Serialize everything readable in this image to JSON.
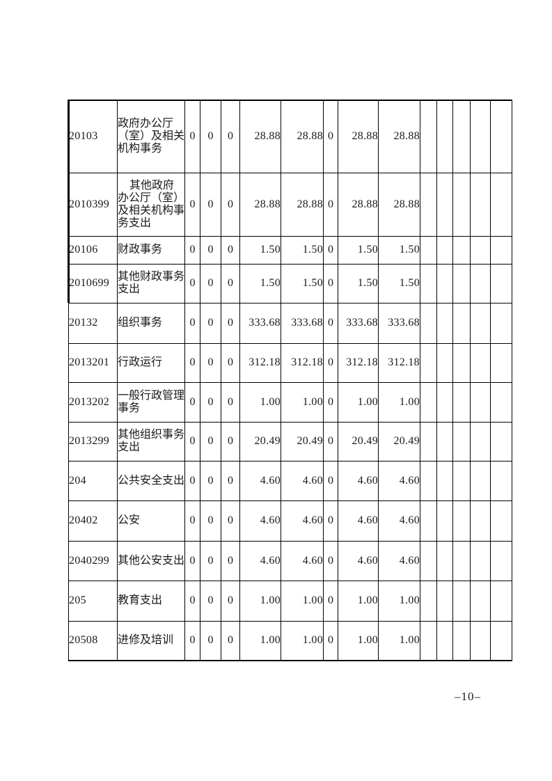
{
  "page": {
    "number": "–10–"
  },
  "table": {
    "rows": [
      {
        "code": "20103",
        "desc": "政府办公厅（室）及相关机构事务",
        "indent": false,
        "cells": [
          "0",
          "0",
          "0",
          "28.88",
          "28.88",
          "0",
          "28.88",
          "28.88",
          "",
          "",
          "",
          "",
          ""
        ]
      },
      {
        "code": "2010399",
        "desc": "其他政府办公厅（室）及相关机构事务支出",
        "indent": true,
        "cells": [
          "0",
          "0",
          "0",
          "28.88",
          "28.88",
          "0",
          "28.88",
          "28.88",
          "",
          "",
          "",
          "",
          ""
        ]
      },
      {
        "code": "20106",
        "desc": "财政事务",
        "indent": false,
        "cells": [
          "0",
          "0",
          "0",
          "1.50",
          "1.50",
          "0",
          "1.50",
          "1.50",
          "",
          "",
          "",
          "",
          ""
        ]
      },
      {
        "code": "2010699",
        "desc": "其他财政事务支出",
        "indent": false,
        "cells": [
          "0",
          "0",
          "0",
          "1.50",
          "1.50",
          "0",
          "1.50",
          "1.50",
          "",
          "",
          "",
          "",
          ""
        ]
      },
      {
        "code": "20132",
        "desc": "组织事务",
        "indent": false,
        "cells": [
          "0",
          "0",
          "0",
          "333.68",
          "333.68",
          "0",
          "333.68",
          "333.68",
          "",
          "",
          "",
          "",
          ""
        ]
      },
      {
        "code": "2013201",
        "desc": "行政运行",
        "indent": false,
        "cells": [
          "0",
          "0",
          "0",
          "312.18",
          "312.18",
          "0",
          "312.18",
          "312.18",
          "",
          "",
          "",
          "",
          ""
        ]
      },
      {
        "code": "2013202",
        "desc": "一般行政管理事务",
        "indent": false,
        "cells": [
          "0",
          "0",
          "0",
          "1.00",
          "1.00",
          "0",
          "1.00",
          "1.00",
          "",
          "",
          "",
          "",
          ""
        ]
      },
      {
        "code": "2013299",
        "desc": "其他组织事务支出",
        "indent": false,
        "cells": [
          "0",
          "0",
          "0",
          "20.49",
          "20.49",
          "0",
          "20.49",
          "20.49",
          "",
          "",
          "",
          "",
          ""
        ]
      },
      {
        "code": "204",
        "desc": "公共安全支出",
        "indent": false,
        "cells": [
          "0",
          "0",
          "0",
          "4.60",
          "4.60",
          "0",
          "4.60",
          "4.60",
          "",
          "",
          "",
          "",
          ""
        ]
      },
      {
        "code": "20402",
        "desc": "公安",
        "indent": false,
        "cells": [
          "0",
          "0",
          "0",
          "4.60",
          "4.60",
          "0",
          "4.60",
          "4.60",
          "",
          "",
          "",
          "",
          ""
        ]
      },
      {
        "code": "2040299",
        "desc": "其他公安支出",
        "indent": false,
        "cells": [
          "0",
          "0",
          "0",
          "4.60",
          "4.60",
          "0",
          "4.60",
          "4.60",
          "",
          "",
          "",
          "",
          ""
        ]
      },
      {
        "code": "205",
        "desc": "教育支出",
        "indent": false,
        "cells": [
          "0",
          "0",
          "0",
          "1.00",
          "1.00",
          "0",
          "1.00",
          "1.00",
          "",
          "",
          "",
          "",
          ""
        ]
      },
      {
        "code": "20508",
        "desc": "进修及培训",
        "indent": false,
        "cells": [
          "0",
          "0",
          "0",
          "1.00",
          "1.00",
          "0",
          "1.00",
          "1.00",
          "",
          "",
          "",
          "",
          ""
        ]
      }
    ]
  }
}
